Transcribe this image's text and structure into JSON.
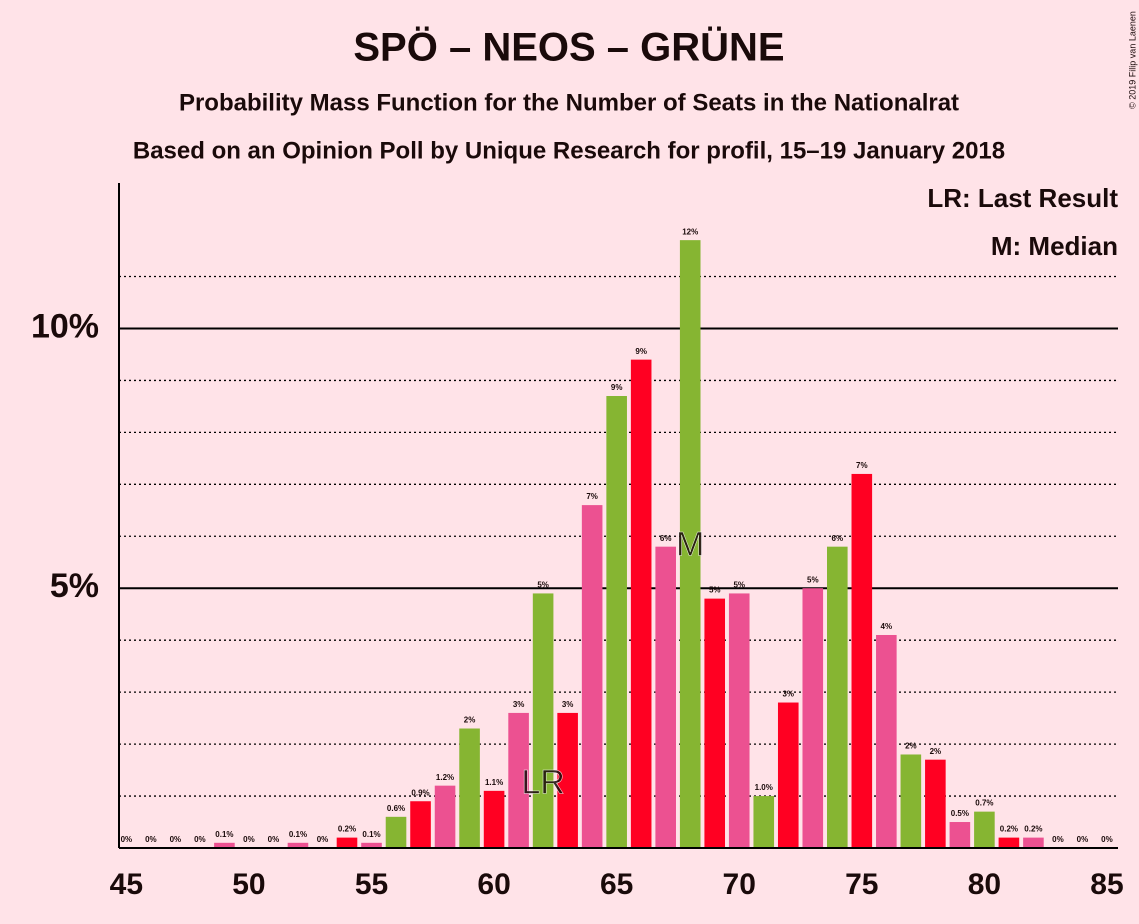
{
  "chart_data": {
    "type": "bar",
    "title": "SPÖ – NEOS – GRÜNE",
    "subtitle": "Probability Mass Function for the Number of Seats in the Nationalrat",
    "subtitle2": "Based on an Opinion Poll by Unique Research for profil, 15–19 January 2018",
    "copyright": "© 2019 Filip van Laenen",
    "legend": [
      "LR: Last Result",
      "M: Median"
    ],
    "x": [
      45,
      46,
      47,
      48,
      49,
      50,
      51,
      52,
      53,
      54,
      55,
      56,
      57,
      58,
      59,
      60,
      61,
      62,
      63,
      64,
      65,
      66,
      67,
      68,
      69,
      70,
      71,
      72,
      73,
      74,
      75,
      76,
      77,
      78,
      79,
      80,
      81,
      82,
      83,
      84,
      85
    ],
    "values": [
      0,
      0,
      0,
      0,
      0.1,
      0,
      0,
      0.1,
      0,
      0.2,
      0.1,
      0.6,
      0.9,
      1.2,
      2.3,
      1.1,
      2.6,
      4.9,
      2.6,
      6.6,
      8.7,
      9.4,
      5.8,
      11.7,
      4.8,
      4.9,
      1.0,
      2.8,
      5.0,
      5.8,
      7.2,
      4.1,
      1.8,
      1.7,
      0.5,
      0.7,
      0.2,
      0.2,
      0,
      0,
      0
    ],
    "value_labels": [
      "0%",
      "0%",
      "0%",
      "0%",
      "0.1%",
      "0%",
      "0%",
      "0.1%",
      "0%",
      "0.2%",
      "0.1%",
      "0.6%",
      "0.9%",
      "1.2%",
      "2%",
      "1.1%",
      "3%",
      "5%",
      "3%",
      "7%",
      "9%",
      "9%",
      "6%",
      "12%",
      "5%",
      "5%",
      "1.0%",
      "3%",
      "5%",
      "6%",
      "7%",
      "4%",
      "2%",
      "2%",
      "0.5%",
      "0.7%",
      "0.2%",
      "0.2%",
      "0%",
      "0%",
      "0%"
    ],
    "colors": [
      "#ff0022",
      "#ec5191",
      "#86b532",
      "#ff0022",
      "#ec5191",
      "#86b532",
      "#ff0022",
      "#ec5191",
      "#86b532",
      "#ff0022",
      "#ec5191",
      "#86b532",
      "#ff0022",
      "#ec5191",
      "#86b532",
      "#ff0022",
      "#ec5191",
      "#86b532",
      "#ff0022",
      "#ec5191",
      "#86b532",
      "#ff0022",
      "#ec5191",
      "#86b532",
      "#ff0022",
      "#ec5191",
      "#86b532",
      "#ff0022",
      "#ec5191",
      "#86b532",
      "#ff0022",
      "#ec5191",
      "#86b532",
      "#ff0022",
      "#ec5191",
      "#86b532",
      "#ff0022",
      "#ec5191",
      "#86b532",
      "#ff0022",
      "#ec5191"
    ],
    "annotations": [
      {
        "x": 62,
        "label": "LR"
      },
      {
        "x": 68,
        "label": "M"
      }
    ],
    "xlim": [
      44.7,
      85.45
    ],
    "xticks": [
      45,
      50,
      55,
      60,
      65,
      70,
      75,
      80,
      85
    ],
    "ylim": [
      0,
      12.8
    ],
    "yticks": [
      {
        "value": 5,
        "label": "5%"
      },
      {
        "value": 10,
        "label": "10%"
      }
    ],
    "minor_yticks": [
      1,
      2,
      3,
      4,
      6,
      7,
      8,
      9,
      11
    ],
    "grid": true
  }
}
